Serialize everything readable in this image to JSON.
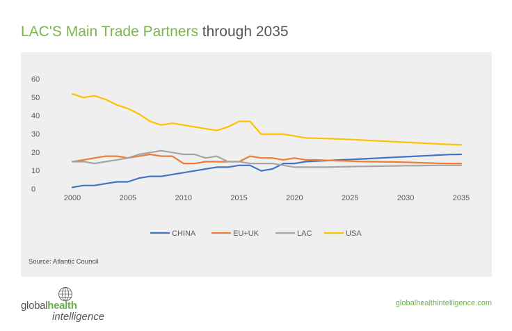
{
  "header": {
    "title_highlight": "LAC'S Main Trade Partners",
    "title_rest": " through 2035"
  },
  "source": "Source: Atlantic Council",
  "brand": {
    "line1_regular": "global",
    "line1_strong": "health",
    "line2": "intelligence",
    "site": "globalhealthintelligence.com"
  },
  "colors": {
    "china": "#4472c4",
    "euuk": "#ed7d31",
    "lac": "#a5a5a5",
    "usa": "#ffc000",
    "accent": "#7ab648"
  },
  "chart_data": {
    "type": "line",
    "x": [
      2000,
      2001,
      2002,
      2003,
      2004,
      2005,
      2006,
      2007,
      2008,
      2009,
      2010,
      2011,
      2012,
      2013,
      2014,
      2015,
      2016,
      2017,
      2018,
      2019,
      2020,
      2021,
      2022,
      2023,
      2024,
      2025,
      2026,
      2027,
      2028,
      2029,
      2030,
      2031,
      2032,
      2033,
      2034,
      2035
    ],
    "xticks": [
      2000,
      2005,
      2010,
      2015,
      2020,
      2025,
      2030,
      2035
    ],
    "yticks": [
      0,
      10,
      20,
      30,
      40,
      50,
      60
    ],
    "ylim": [
      0,
      60
    ],
    "xlim": [
      2000,
      2035
    ],
    "grid": false,
    "legend_position": "bottom",
    "series": [
      {
        "name": "CHINA",
        "color": "#4472c4",
        "values": [
          1,
          2,
          2,
          3,
          4,
          4,
          6,
          7,
          7,
          8,
          9,
          10,
          11,
          12,
          12,
          13,
          13,
          10,
          11,
          14,
          14,
          15,
          15.3,
          15.6,
          15.9,
          16.2,
          16.5,
          16.8,
          17.1,
          17.4,
          17.7,
          18,
          18.3,
          18.6,
          18.9,
          19
        ]
      },
      {
        "name": "EU+UK",
        "color": "#ed7d31",
        "values": [
          15,
          16,
          17,
          18,
          18,
          17,
          18,
          19,
          18,
          18,
          14,
          14,
          15,
          15,
          15,
          15,
          18,
          17,
          17,
          16,
          17,
          16,
          15.9,
          15.7,
          15.5,
          15.3,
          15.1,
          15,
          14.9,
          14.8,
          14.7,
          14.5,
          14.3,
          14.1,
          14,
          14
        ]
      },
      {
        "name": "LAC",
        "color": "#a5a5a5",
        "values": [
          15,
          15,
          14,
          15,
          16,
          17,
          19,
          20,
          21,
          20,
          19,
          19,
          17,
          18,
          15,
          15,
          14,
          14,
          14,
          13,
          12,
          12,
          12,
          12,
          12.2,
          12.3,
          12.4,
          12.5,
          12.6,
          12.7,
          12.8,
          12.8,
          12.9,
          13,
          13,
          13
        ]
      },
      {
        "name": "USA",
        "color": "#ffc000",
        "values": [
          52,
          50,
          51,
          49,
          46,
          44,
          41,
          37,
          35,
          36,
          35,
          34,
          33,
          32,
          34,
          37,
          37,
          30,
          30,
          30,
          29,
          28,
          27.8,
          27.6,
          27.4,
          27.1,
          26.8,
          26.5,
          26.2,
          25.9,
          25.6,
          25.3,
          25,
          24.7,
          24.4,
          24.2
        ]
      }
    ]
  }
}
